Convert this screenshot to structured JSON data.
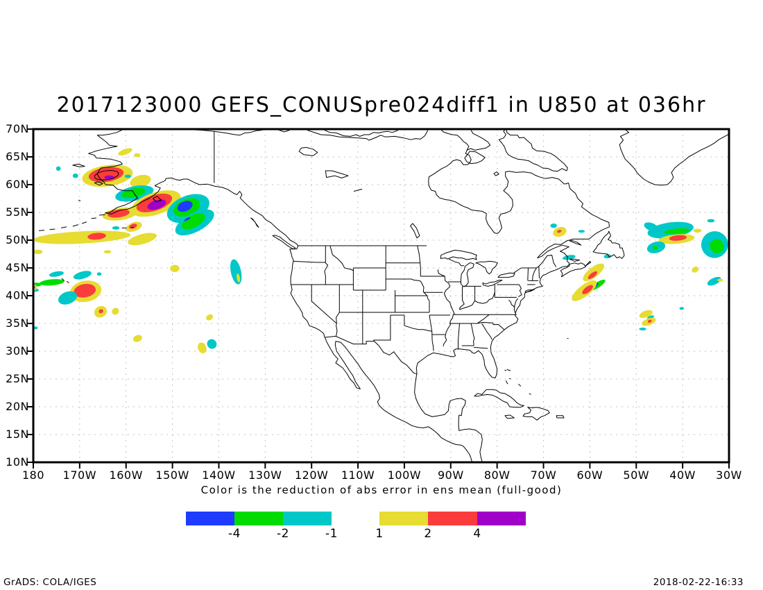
{
  "title": "2017123000 GEFS_CONUSpre024diff1 in U850 at 036hr",
  "axes": {
    "lat_labels": [
      "70N",
      "65N",
      "60N",
      "55N",
      "50N",
      "45N",
      "40N",
      "35N",
      "30N",
      "25N",
      "20N",
      "15N",
      "10N"
    ],
    "lon_labels": [
      "180",
      "170W",
      "160W",
      "150W",
      "140W",
      "130W",
      "120W",
      "110W",
      "100W",
      "90W",
      "80W",
      "70W",
      "60W",
      "50W",
      "40W",
      "30W"
    ]
  },
  "legend": {
    "caption": "Color is the reduction of abs error in ens mean (full-good)",
    "bars": [
      {
        "segments": [
          "#1e3cff",
          "#00dc00",
          "#00c8c8"
        ],
        "ticks": [
          {
            "label": "-4",
            "offset": 70
          },
          {
            "label": "-2",
            "offset": 140
          },
          {
            "label": "-1",
            "offset": 210
          }
        ]
      },
      {
        "segments": [
          "#e6dc32",
          "#fa3c3c",
          "#a000c8"
        ],
        "ticks": [
          {
            "label": "1",
            "offset": 0
          },
          {
            "label": "2",
            "offset": 70
          },
          {
            "label": "4",
            "offset": 141
          }
        ]
      }
    ]
  },
  "footer": {
    "left": "GrADS: COLA/IGES",
    "right": "2018-02-22-16:33"
  },
  "chart_data": {
    "type": "filled-contour-map",
    "title": "2017123000 GEFS_CONUSpre024diff1 in U850 at 036hr",
    "field": "U850",
    "forecast_hour": "036hr",
    "init_time": "2017123000",
    "extent": {
      "lon_min": -180,
      "lon_max": -30,
      "lat_min": 10,
      "lat_max": 70
    },
    "grid": {
      "lon_step": 10,
      "lat_step": 5,
      "style": "dotted"
    },
    "levels": [
      -4,
      -2,
      -1,
      1,
      2,
      4
    ],
    "palette": {
      "b": "#1e3cff",
      "g": "#00dc00",
      "c": "#00c8c8",
      "y": "#e6dc32",
      "r": "#fa3c3c",
      "p": "#a000c8"
    },
    "grid_color": "#c2c2c2",
    "regions": [
      [
        "y",
        -160.2,
        65.9,
        1.6,
        0.5,
        -20
      ],
      [
        "y",
        -157.6,
        65.3,
        0.7,
        0.35,
        0
      ],
      [
        "c",
        -174.6,
        62.9,
        0.5,
        0.4,
        0
      ],
      [
        "c",
        -170.9,
        61.6,
        0.6,
        0.4,
        0
      ],
      [
        "y",
        -164.0,
        61.6,
        5.5,
        1.9,
        -8
      ],
      [
        "r",
        -164.3,
        61.8,
        3.8,
        1.3,
        -8
      ],
      [
        "p",
        -163.6,
        61.3,
        1.1,
        0.35,
        0
      ],
      [
        "c",
        -159.6,
        61.5,
        0.7,
        0.3,
        0
      ],
      [
        "y",
        -156.9,
        60.6,
        2.3,
        1.1,
        -15
      ],
      [
        "c",
        -158.2,
        58.4,
        4.2,
        1.3,
        -12
      ],
      [
        "g",
        -158.4,
        58.5,
        2.6,
        0.8,
        -12
      ],
      [
        "y",
        -153.6,
        56.6,
        5.6,
        2.0,
        -18
      ],
      [
        "r",
        -153.9,
        56.7,
        4.0,
        1.4,
        -18
      ],
      [
        "p",
        -153.4,
        56.4,
        2.1,
        0.8,
        -18
      ],
      [
        "c",
        -146.6,
        55.7,
        4.8,
        2.3,
        -22
      ],
      [
        "g",
        -146.9,
        55.9,
        3.0,
        1.5,
        -22
      ],
      [
        "b",
        -147.3,
        56.1,
        1.7,
        0.9,
        -22
      ],
      [
        "c",
        -145.2,
        53.2,
        4.6,
        1.7,
        -28
      ],
      [
        "g",
        -145.5,
        53.4,
        2.8,
        1.1,
        -28
      ],
      [
        "b",
        -146.8,
        53.8,
        0.8,
        0.2,
        -28
      ],
      [
        "y",
        -161.3,
        54.7,
        3.8,
        1.1,
        -8
      ],
      [
        "r",
        -161.6,
        54.8,
        2.4,
        0.7,
        -8
      ],
      [
        "y",
        -158.3,
        52.4,
        1.8,
        0.8,
        -20
      ],
      [
        "r",
        -158.5,
        52.5,
        0.9,
        0.4,
        -20
      ],
      [
        "y",
        -169.5,
        50.5,
        10.5,
        1.1,
        -3
      ],
      [
        "y",
        -156.5,
        50.2,
        3.2,
        0.9,
        -15
      ],
      [
        "r",
        -166.3,
        50.7,
        2.0,
        0.6,
        -5
      ],
      [
        "c",
        -162.2,
        52.2,
        0.8,
        0.3,
        0
      ],
      [
        "y",
        -179.0,
        47.9,
        1.0,
        0.4,
        0
      ],
      [
        "y",
        -164.0,
        47.9,
        0.8,
        0.3,
        0
      ],
      [
        "g",
        -176.0,
        42.4,
        2.7,
        0.55,
        -5
      ],
      [
        "c",
        -175.0,
        43.9,
        1.6,
        0.45,
        -10
      ],
      [
        "c",
        -169.4,
        43.7,
        2.0,
        0.65,
        -15
      ],
      [
        "c",
        -165.8,
        43.9,
        0.5,
        0.3,
        0
      ],
      [
        "y",
        -168.7,
        40.8,
        3.4,
        1.9,
        -10
      ],
      [
        "r",
        -168.9,
        40.9,
        2.4,
        1.2,
        -10
      ],
      [
        "c",
        -172.6,
        39.6,
        2.1,
        1.1,
        -20
      ],
      [
        "g",
        -179.3,
        42.0,
        1.0,
        0.35,
        0
      ],
      [
        "c",
        -179.6,
        41.0,
        0.8,
        0.3,
        0
      ],
      [
        "y",
        -179.8,
        41.5,
        0.55,
        0.5,
        0
      ],
      [
        "r",
        -179.9,
        41.5,
        0.3,
        0.25,
        0
      ],
      [
        "y",
        -165.5,
        37.1,
        1.4,
        1.0,
        -30
      ],
      [
        "r",
        -165.4,
        37.2,
        0.5,
        0.35,
        -30
      ],
      [
        "y",
        -162.3,
        37.2,
        0.8,
        0.6,
        -40
      ],
      [
        "y",
        -149.5,
        44.9,
        1.0,
        0.65,
        0
      ],
      [
        "y",
        -142.0,
        36.1,
        0.8,
        0.5,
        -30
      ],
      [
        "y",
        -157.5,
        32.3,
        1.0,
        0.6,
        -20
      ],
      [
        "y",
        -143.6,
        30.6,
        0.9,
        1.0,
        -20
      ],
      [
        "c",
        -141.5,
        31.3,
        1.0,
        0.9,
        -40
      ],
      [
        "c",
        -136.3,
        44.3,
        1.1,
        2.3,
        -12
      ],
      [
        "y",
        -135.8,
        43.2,
        0.35,
        0.8,
        -10
      ],
      [
        "c",
        -179.7,
        34.2,
        0.7,
        0.25,
        0
      ],
      [
        "c",
        -42.6,
        51.8,
        5.0,
        1.4,
        -8
      ],
      [
        "c",
        -46.8,
        52.4,
        1.6,
        0.7,
        20
      ],
      [
        "g",
        -41.2,
        51.6,
        2.8,
        0.5,
        -5
      ],
      [
        "y",
        -41.3,
        50.2,
        3.9,
        0.85,
        -5
      ],
      [
        "r",
        -41.0,
        50.4,
        1.9,
        0.5,
        -5
      ],
      [
        "y",
        -36.8,
        51.7,
        0.9,
        0.35,
        0
      ],
      [
        "c",
        -45.7,
        48.7,
        2.0,
        1.0,
        -15
      ],
      [
        "g",
        -45.9,
        48.6,
        0.5,
        0.4,
        0
      ],
      [
        "c",
        -33.1,
        49.2,
        2.9,
        2.4,
        -35
      ],
      [
        "g",
        -32.6,
        48.9,
        1.5,
        1.3,
        -35
      ],
      [
        "c",
        -61.8,
        51.6,
        0.7,
        0.25,
        0
      ],
      [
        "y",
        -66.5,
        51.5,
        1.5,
        0.85,
        -20
      ],
      [
        "r",
        -66.6,
        51.6,
        0.5,
        0.25,
        -20
      ],
      [
        "c",
        -67.8,
        52.6,
        0.7,
        0.4,
        0
      ],
      [
        "c",
        -64.5,
        46.9,
        1.4,
        0.4,
        -10
      ],
      [
        "c",
        -56.2,
        47.1,
        0.8,
        0.35,
        -10
      ],
      [
        "y",
        -59.2,
        44.2,
        2.8,
        0.9,
        -38
      ],
      [
        "r",
        -59.4,
        43.7,
        1.2,
        0.4,
        -38
      ],
      [
        "g",
        -58.4,
        41.9,
        2.0,
        0.5,
        -32
      ],
      [
        "b",
        -58.8,
        41.9,
        0.7,
        0.28,
        -32
      ],
      [
        "y",
        -61.2,
        40.9,
        3.3,
        1.0,
        -38
      ],
      [
        "r",
        -60.5,
        41.1,
        1.4,
        0.5,
        -38
      ],
      [
        "y",
        -47.9,
        36.7,
        1.5,
        0.6,
        -20
      ],
      [
        "c",
        -46.9,
        36.1,
        0.8,
        0.3,
        -20
      ],
      [
        "y",
        -47.3,
        35.3,
        1.6,
        0.6,
        -20
      ],
      [
        "r",
        -47.1,
        35.4,
        0.45,
        0.25,
        -20
      ],
      [
        "c",
        -48.6,
        34.0,
        0.8,
        0.25,
        0
      ],
      [
        "y",
        -37.3,
        44.7,
        0.8,
        0.5,
        -30
      ],
      [
        "c",
        -33.2,
        42.6,
        1.6,
        0.6,
        -25
      ],
      [
        "y",
        -31.9,
        42.8,
        0.6,
        0.25,
        0
      ],
      [
        "c",
        -40.2,
        37.7,
        0.5,
        0.25,
        0
      ],
      [
        "c",
        -33.9,
        53.5,
        0.8,
        0.3,
        0
      ]
    ],
    "contour_fragments": {
      "ellipses": [
        [
          -164.2,
          61.7,
          2.6,
          0.8,
          -8
        ]
      ],
      "dashes": [
        [
          -173.9,
          43.1,
          -173.3,
          42.7
        ],
        [
          -172.8,
          42.6,
          -172.3,
          42.3
        ],
        [
          -160.9,
          52.2,
          -159.9,
          52.2
        ],
        [
          -158.9,
          52.3,
          -158.3,
          52.3
        ]
      ]
    }
  }
}
